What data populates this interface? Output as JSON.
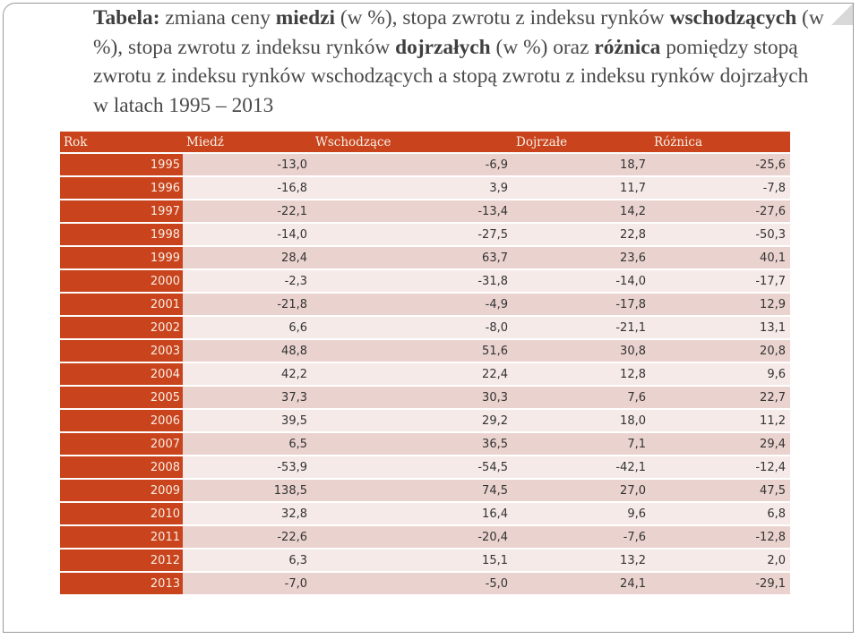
{
  "title": {
    "b1": "Tabela:",
    "t1": " zmiana ceny ",
    "b2": "miedzi",
    "t2": " (w %), stopa zwrotu z indeksu rynków ",
    "b3": "wschodzących",
    "t3": " (w %),  stopa zwrotu z indeksu rynków ",
    "b4": "dojrzałych",
    "t4": " (w %) oraz ",
    "b5": "różnica",
    "t5": " pomiędzy stopą zwrotu z indeksu rynków wschodzących a stopą zwrotu z indeksu rynków dojrzałych w latach 1995 – 2013"
  },
  "table": {
    "headers": [
      "Rok",
      "Miedź",
      "Wschodzące",
      "Dojrzałe",
      "Różnica"
    ],
    "rows": [
      [
        "1995",
        "-13,0",
        "-6,9",
        "18,7",
        "-25,6"
      ],
      [
        "1996",
        "-16,8",
        "3,9",
        "11,7",
        "-7,8"
      ],
      [
        "1997",
        "-22,1",
        "-13,4",
        "14,2",
        "-27,6"
      ],
      [
        "1998",
        "-14,0",
        "-27,5",
        "22,8",
        "-50,3"
      ],
      [
        "1999",
        "28,4",
        "63,7",
        "23,6",
        "40,1"
      ],
      [
        "2000",
        "-2,3",
        "-31,8",
        "-14,0",
        "-17,7"
      ],
      [
        "2001",
        "-21,8",
        "-4,9",
        "-17,8",
        "12,9"
      ],
      [
        "2002",
        "6,6",
        "-8,0",
        "-21,1",
        "13,1"
      ],
      [
        "2003",
        "48,8",
        "51,6",
        "30,8",
        "20,8"
      ],
      [
        "2004",
        "42,2",
        "22,4",
        "12,8",
        "9,6"
      ],
      [
        "2005",
        "37,3",
        "30,3",
        "7,6",
        "22,7"
      ],
      [
        "2006",
        "39,5",
        "29,2",
        "18,0",
        "11,2"
      ],
      [
        "2007",
        "6,5",
        "36,5",
        "7,1",
        "29,4"
      ],
      [
        "2008",
        "-53,9",
        "-54,5",
        "-42,1",
        "-12,4"
      ],
      [
        "2009",
        "138,5",
        "74,5",
        "27,0",
        "47,5"
      ],
      [
        "2010",
        "32,8",
        "16,4",
        "9,6",
        "6,8"
      ],
      [
        "2011",
        "-22,6",
        "-20,4",
        "-7,6",
        "-12,8"
      ],
      [
        "2012",
        "6,3",
        "15,1",
        "13,2",
        "2,0"
      ],
      [
        "2013",
        "-7,0",
        "-5,0",
        "24,1",
        "-29,1"
      ]
    ]
  },
  "colors": {
    "accent": "#c9431c",
    "row_dark": "#ead3cf",
    "row_light": "#f5eae8"
  }
}
